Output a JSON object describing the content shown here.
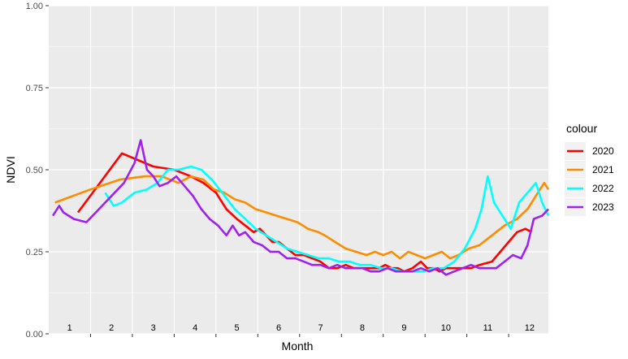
{
  "chart_data": {
    "type": "line",
    "title": "",
    "xlabel": "Month",
    "ylabel": "NDVI",
    "ylim": [
      0,
      1
    ],
    "xlim": [
      0.5,
      12.45
    ],
    "y_ticks": [
      "0.00",
      "0.25",
      "0.50",
      "0.75",
      "1.00"
    ],
    "y_tick_values": [
      0,
      0.25,
      0.5,
      0.75,
      1.0
    ],
    "month_labels": [
      "1",
      "2",
      "3",
      "4",
      "5",
      "6",
      "7",
      "8",
      "9",
      "10",
      "11",
      "12"
    ],
    "grid": true,
    "legend": {
      "title": "colour",
      "position": "right"
    },
    "series": [
      {
        "name": "2020",
        "color": "#ff0000",
        "x": [
          1.2,
          2.25,
          3.0,
          3.5,
          3.9,
          4.2,
          4.5,
          4.75,
          5.0,
          5.2,
          5.4,
          5.55,
          5.7,
          5.85,
          6.0,
          6.2,
          6.4,
          6.6,
          6.8,
          7.0,
          7.2,
          7.4,
          7.6,
          7.8,
          8.0,
          8.2,
          8.4,
          8.55,
          8.7,
          8.85,
          9.0,
          9.2,
          9.4,
          9.55,
          9.7,
          9.85,
          10.0,
          10.3,
          10.6,
          10.8,
          11.1,
          11.3,
          11.5,
          11.7,
          11.9,
          12.05
        ],
        "values": [
          0.37,
          0.55,
          0.51,
          0.5,
          0.48,
          0.46,
          0.43,
          0.38,
          0.35,
          0.33,
          0.31,
          0.32,
          0.3,
          0.28,
          0.28,
          0.26,
          0.24,
          0.24,
          0.23,
          0.22,
          0.2,
          0.2,
          0.21,
          0.2,
          0.2,
          0.2,
          0.2,
          0.21,
          0.2,
          0.2,
          0.19,
          0.2,
          0.22,
          0.2,
          0.2,
          0.19,
          0.2,
          0.2,
          0.2,
          0.21,
          0.22,
          0.25,
          0.28,
          0.31,
          0.32,
          0.31
        ]
      },
      {
        "name": "2021",
        "color": "#ff8c00",
        "x": [
          0.65,
          1.5,
          2.2,
          2.8,
          3.2,
          3.6,
          3.9,
          4.2,
          4.45,
          4.7,
          4.95,
          5.2,
          5.45,
          5.7,
          5.95,
          6.2,
          6.45,
          6.7,
          6.95,
          7.1,
          7.35,
          7.6,
          7.85,
          8.1,
          8.3,
          8.5,
          8.7,
          8.9,
          9.1,
          9.3,
          9.5,
          9.7,
          9.9,
          10.1,
          10.3,
          10.55,
          10.8,
          11.1,
          11.4,
          11.7,
          11.95,
          12.2,
          12.35,
          12.45
        ],
        "values": [
          0.4,
          0.44,
          0.47,
          0.48,
          0.48,
          0.46,
          0.48,
          0.47,
          0.44,
          0.43,
          0.41,
          0.4,
          0.38,
          0.37,
          0.36,
          0.35,
          0.34,
          0.32,
          0.31,
          0.3,
          0.28,
          0.26,
          0.25,
          0.24,
          0.25,
          0.24,
          0.25,
          0.23,
          0.25,
          0.24,
          0.23,
          0.24,
          0.25,
          0.23,
          0.24,
          0.26,
          0.27,
          0.3,
          0.33,
          0.35,
          0.38,
          0.43,
          0.46,
          0.44
        ]
      },
      {
        "name": "2022",
        "color": "#00ffff",
        "x": [
          1.85,
          2.05,
          2.25,
          2.55,
          2.85,
          3.1,
          3.35,
          3.6,
          3.9,
          4.15,
          4.4,
          4.65,
          4.95,
          5.2,
          5.45,
          5.7,
          5.95,
          6.2,
          6.45,
          6.7,
          6.95,
          7.2,
          7.45,
          7.7,
          7.95,
          8.2,
          8.45,
          8.7,
          8.95,
          9.2,
          9.45,
          9.7,
          9.95,
          10.2,
          10.45,
          10.7,
          10.85,
          11.0,
          11.15,
          11.35,
          11.55,
          11.75,
          11.95,
          12.15,
          12.3,
          12.45
        ],
        "values": [
          0.43,
          0.39,
          0.4,
          0.43,
          0.44,
          0.46,
          0.5,
          0.5,
          0.51,
          0.5,
          0.47,
          0.43,
          0.38,
          0.35,
          0.32,
          0.3,
          0.28,
          0.26,
          0.25,
          0.24,
          0.23,
          0.23,
          0.22,
          0.22,
          0.21,
          0.21,
          0.2,
          0.2,
          0.19,
          0.19,
          0.19,
          0.2,
          0.2,
          0.22,
          0.26,
          0.32,
          0.38,
          0.48,
          0.4,
          0.36,
          0.32,
          0.4,
          0.43,
          0.46,
          0.4,
          0.36
        ]
      },
      {
        "name": "2023",
        "color": "#a020f0",
        "x": [
          0.6,
          0.75,
          0.85,
          1.1,
          1.4,
          1.7,
          2.0,
          2.3,
          2.55,
          2.7,
          2.85,
          3.0,
          3.15,
          3.35,
          3.55,
          3.75,
          3.95,
          4.15,
          4.35,
          4.55,
          4.75,
          4.9,
          5.05,
          5.2,
          5.4,
          5.6,
          5.8,
          6.0,
          6.2,
          6.4,
          6.6,
          6.8,
          7.0,
          7.2,
          7.4,
          7.6,
          7.8,
          8.0,
          8.2,
          8.4,
          8.6,
          8.8,
          9.0,
          9.2,
          9.4,
          9.6,
          9.8,
          10.0,
          10.2,
          10.4,
          10.6,
          10.8,
          11.0,
          11.2,
          11.4,
          11.6,
          11.8,
          11.95,
          12.1,
          12.3,
          12.45
        ],
        "values": [
          0.36,
          0.39,
          0.37,
          0.35,
          0.34,
          0.38,
          0.42,
          0.46,
          0.52,
          0.59,
          0.5,
          0.48,
          0.45,
          0.46,
          0.48,
          0.45,
          0.42,
          0.38,
          0.35,
          0.33,
          0.3,
          0.33,
          0.3,
          0.31,
          0.28,
          0.27,
          0.25,
          0.25,
          0.23,
          0.23,
          0.22,
          0.21,
          0.21,
          0.2,
          0.21,
          0.2,
          0.2,
          0.2,
          0.19,
          0.19,
          0.2,
          0.19,
          0.19,
          0.19,
          0.2,
          0.19,
          0.2,
          0.18,
          0.19,
          0.2,
          0.21,
          0.2,
          0.2,
          0.2,
          0.22,
          0.24,
          0.23,
          0.27,
          0.35,
          0.36,
          0.38
        ]
      }
    ]
  }
}
